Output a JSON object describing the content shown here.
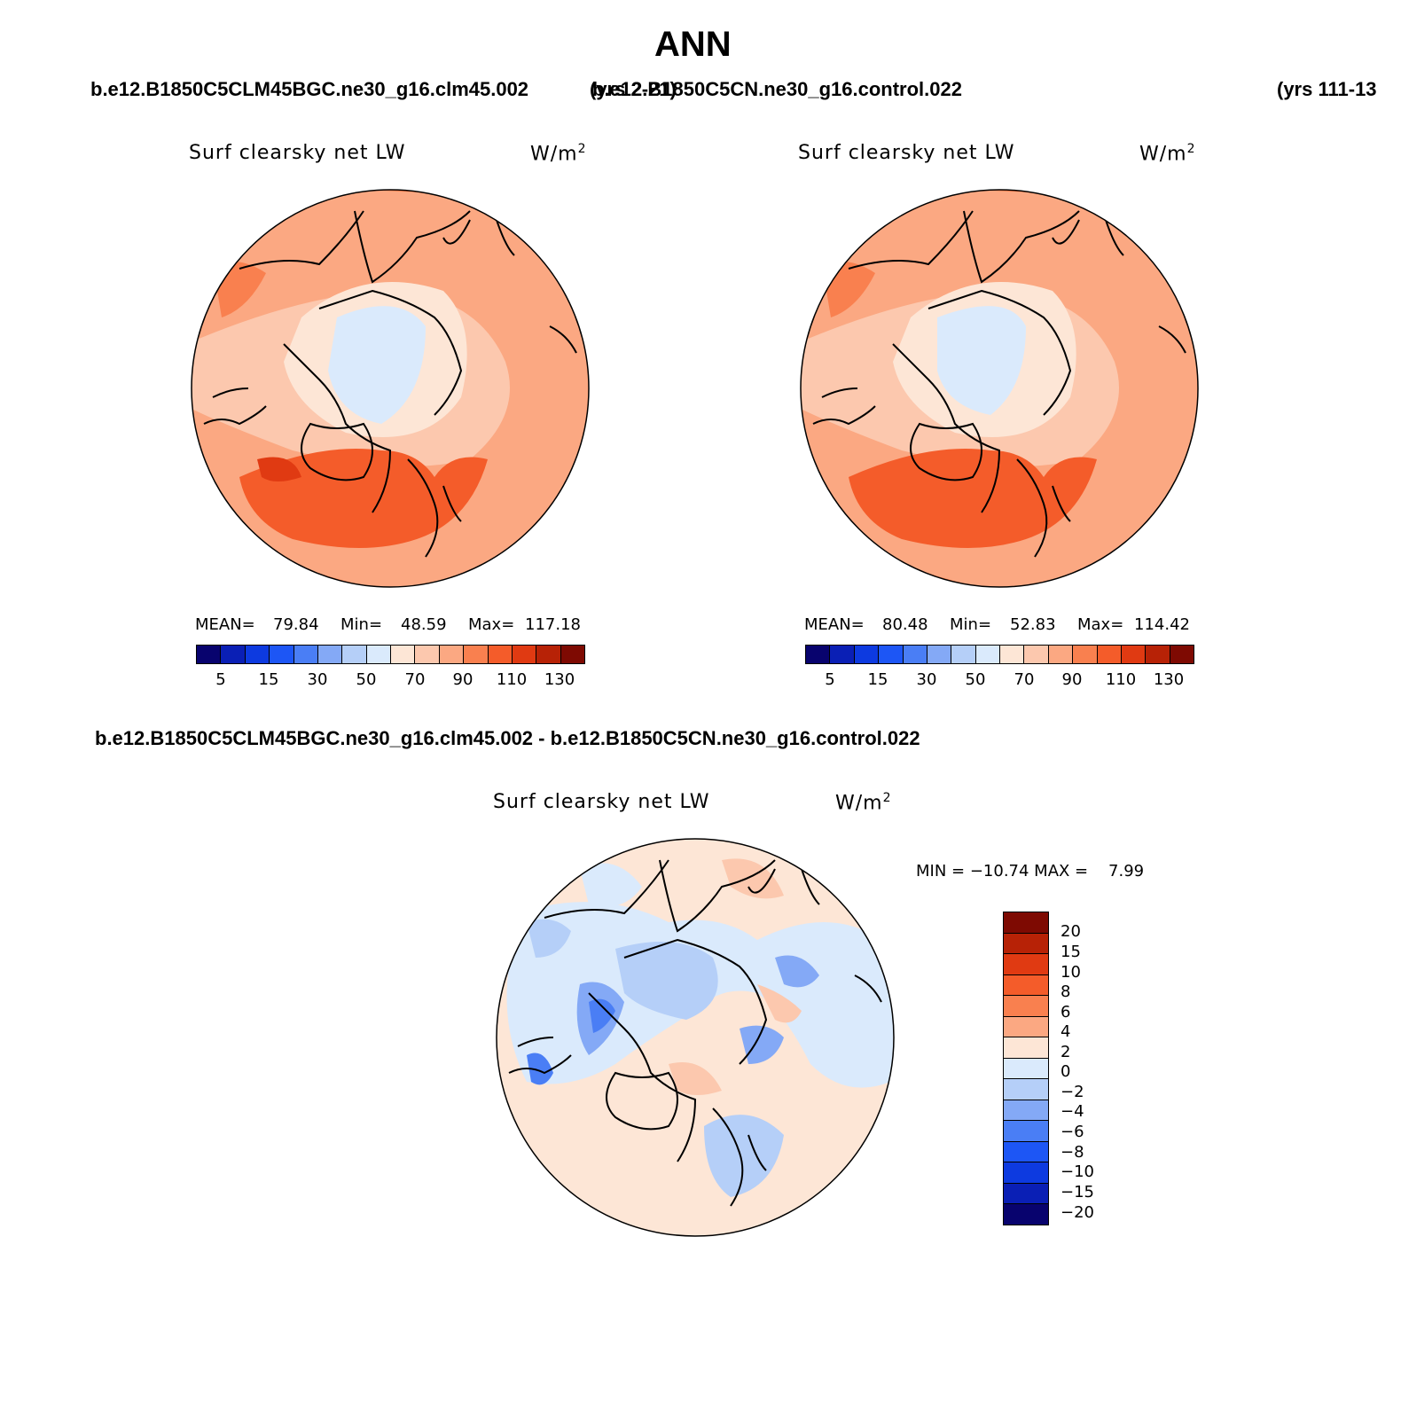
{
  "title": "ANN",
  "header": {
    "case1": "b.e12.B1850C5CLM45BGC.ne30_g16.clm45.002",
    "years1": "(yrs 2-21)",
    "case2": "b.e12.B1850C5CN.ne30_g16.control.022",
    "years2": "(yrs 111-13"
  },
  "diff_header": "b.e12.B1850C5CLM45BGC.ne30_g16.clm45.002 - b.e12.B1850C5CN.ne30_g16.control.022",
  "panels": [
    {
      "variable": "Surf clearsky net LW",
      "units_base": "W/m",
      "units_exp": "2",
      "mean_label": "MEAN=",
      "mean": "79.84",
      "min_label": "Min=",
      "min": "48.59",
      "max_label": "Max=",
      "max": "117.18"
    },
    {
      "variable": "Surf clearsky net LW",
      "units_base": "W/m",
      "units_exp": "2",
      "mean_label": "MEAN=",
      "mean": "80.48",
      "min_label": "Min=",
      "min": "52.83",
      "max_label": "Max=",
      "max": "114.42"
    },
    {
      "variable": "Surf clearsky net LW",
      "units_base": "W/m",
      "units_exp": "2",
      "minmax_text": "MIN = −10.74 MAX =    7.99"
    }
  ],
  "colorbar_main": {
    "colors": [
      "#08036e",
      "#0a1fb5",
      "#0d3ae0",
      "#1d56f5",
      "#4a7ef5",
      "#84a9f6",
      "#b5cff8",
      "#daeafc",
      "#fde6d6",
      "#fcc8ae",
      "#fba882",
      "#f9804f",
      "#f45c2a",
      "#e03a12",
      "#b72206",
      "#7e0a02"
    ],
    "labels": [
      "5",
      "15",
      "30",
      "50",
      "70",
      "90",
      "110",
      "130"
    ]
  },
  "colorbar_diff": {
    "colors": [
      "#7e0a02",
      "#b72206",
      "#e03a12",
      "#f45c2a",
      "#f9804f",
      "#fba882",
      "#fde6d6",
      "#daeafc",
      "#b5cff8",
      "#84a9f6",
      "#4a7ef5",
      "#1d56f5",
      "#0d3ae0",
      "#0a1fb5",
      "#08036e"
    ],
    "labels": [
      "20",
      "15",
      "10",
      "8",
      "6",
      "4",
      "2",
      "0",
      "−2",
      "−4",
      "−6",
      "−8",
      "−10",
      "−15",
      "−20"
    ]
  }
}
